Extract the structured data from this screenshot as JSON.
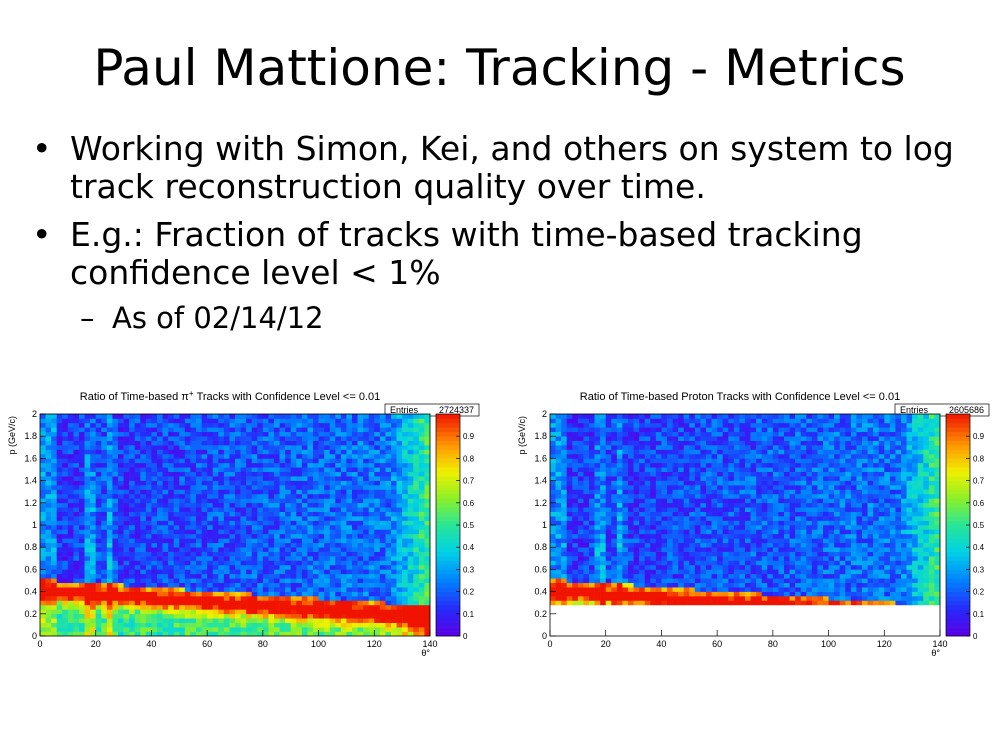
{
  "slide": {
    "title": "Paul Mattione: Tracking - Metrics",
    "bullets": [
      "Working with Simon, Kei, and others on system to log track reconstruction quality over time.",
      "E.g.: Fraction of tracks with time-based tracking confidence level < 1%"
    ],
    "subbullet": "As of 02/14/12",
    "bullet_glyph": "•",
    "dash_glyph": "–"
  },
  "chart_data": [
    {
      "type": "heatmap",
      "title": "Ratio of Time-based π+ Tracks with Confidence Level <= 0.01",
      "title_parts": {
        "pre": "Ratio of Time-based π",
        "sup": "+",
        "post": " Tracks with Confidence Level <= 0.01"
      },
      "xlabel": "θ°",
      "ylabel": "p (GeV/c)",
      "xlim": [
        0,
        140
      ],
      "ylim": [
        0,
        2
      ],
      "x_ticks": [
        "0",
        "20",
        "40",
        "60",
        "80",
        "100",
        "120",
        "140"
      ],
      "y_ticks": [
        "0",
        "0.2",
        "0.4",
        "0.6",
        "0.8",
        "1",
        "1.2",
        "1.4",
        "1.6",
        "1.8",
        "2"
      ],
      "z_range": [
        0,
        1
      ],
      "z_ticks": [
        "0",
        "0.1",
        "0.2",
        "0.3",
        "0.4",
        "0.5",
        "0.6",
        "0.7",
        "0.8",
        "0.9"
      ],
      "stats": {
        "label": "Entries",
        "value": "2724337"
      },
      "red_band_low_p_cut": 0.0
    },
    {
      "type": "heatmap",
      "title": "Ratio of Time-based Proton Tracks with Confidence Level <= 0.01",
      "title_parts": {
        "pre": "Ratio of Time-based Proton Tracks with Confidence Level <= 0.01",
        "sup": "",
        "post": ""
      },
      "xlabel": "θ°",
      "ylabel": "p (GeV/c)",
      "xlim": [
        0,
        140
      ],
      "ylim": [
        0,
        2
      ],
      "x_ticks": [
        "0",
        "20",
        "40",
        "60",
        "80",
        "100",
        "120",
        "140"
      ],
      "y_ticks": [
        "0",
        "0.2",
        "0.4",
        "0.6",
        "0.8",
        "1",
        "1.2",
        "1.4",
        "1.6",
        "1.8",
        "2"
      ],
      "z_range": [
        0,
        1
      ],
      "z_ticks": [
        "0",
        "0.1",
        "0.2",
        "0.3",
        "0.4",
        "0.5",
        "0.6",
        "0.7",
        "0.8",
        "0.9"
      ],
      "stats": {
        "label": "Entries",
        "value": "2605686"
      },
      "red_band_low_p_cut": 0.3
    }
  ]
}
